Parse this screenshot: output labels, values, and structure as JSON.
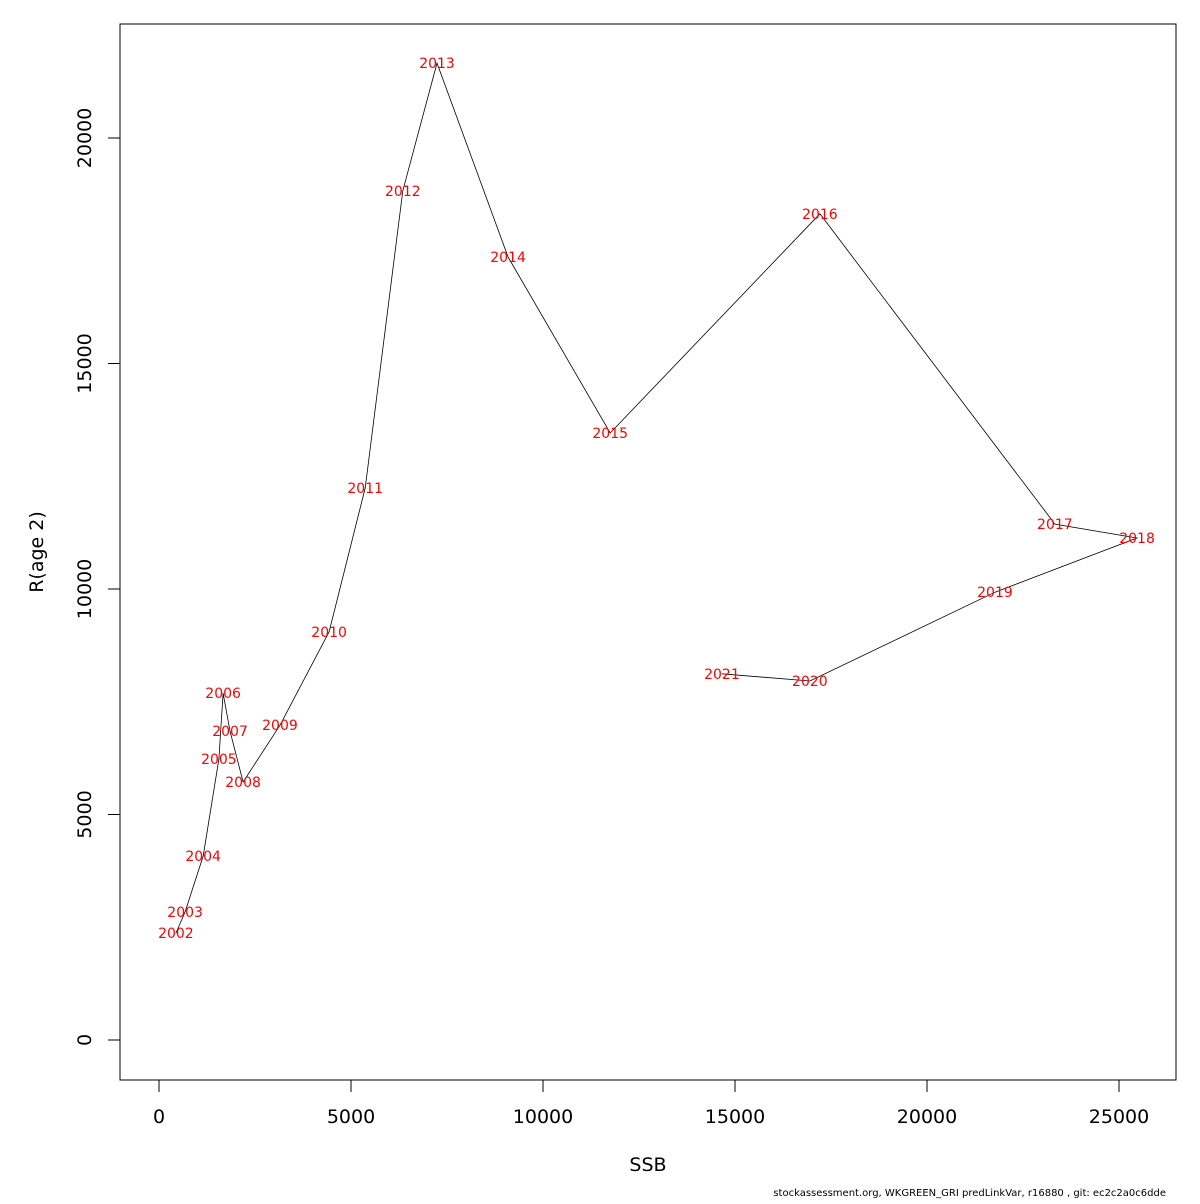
{
  "chart_data": {
    "type": "line",
    "title": "",
    "xlabel": "SSB",
    "ylabel": "R(age 2)",
    "xlim": [
      -1000,
      26500
    ],
    "ylim": [
      -900,
      22500
    ],
    "xticks": [
      0,
      5000,
      10000,
      15000,
      20000,
      25000
    ],
    "yticks": [
      0,
      5000,
      10000,
      15000,
      20000
    ],
    "grid": false,
    "line_color": "#000000",
    "label_color": "#ff0000",
    "points": [
      {
        "label": "2002",
        "x": 440,
        "y": 2370
      },
      {
        "label": "2003",
        "x": 680,
        "y": 2840
      },
      {
        "label": "2004",
        "x": 1150,
        "y": 4080
      },
      {
        "label": "2005",
        "x": 1560,
        "y": 6230
      },
      {
        "label": "2006",
        "x": 1670,
        "y": 7690
      },
      {
        "label": "2007",
        "x": 1850,
        "y": 6850
      },
      {
        "label": "2008",
        "x": 2190,
        "y": 5720
      },
      {
        "label": "2009",
        "x": 3150,
        "y": 6980
      },
      {
        "label": "2010",
        "x": 4430,
        "y": 9050
      },
      {
        "label": "2011",
        "x": 5370,
        "y": 12240
      },
      {
        "label": "2012",
        "x": 6350,
        "y": 18830
      },
      {
        "label": "2013",
        "x": 7240,
        "y": 21660
      },
      {
        "label": "2014",
        "x": 9090,
        "y": 17360
      },
      {
        "label": "2015",
        "x": 11750,
        "y": 13460
      },
      {
        "label": "2016",
        "x": 17210,
        "y": 18320
      },
      {
        "label": "2017",
        "x": 23330,
        "y": 11440
      },
      {
        "label": "2018",
        "x": 25470,
        "y": 11130
      },
      {
        "label": "2019",
        "x": 21770,
        "y": 9930
      },
      {
        "label": "2020",
        "x": 16950,
        "y": 7960
      },
      {
        "label": "2021",
        "x": 14660,
        "y": 8120
      }
    ]
  },
  "footer": "stockassessment.org, WKGREEN_GRI  predLinkVar, r16880 , git: ec2c2a0c6dde"
}
